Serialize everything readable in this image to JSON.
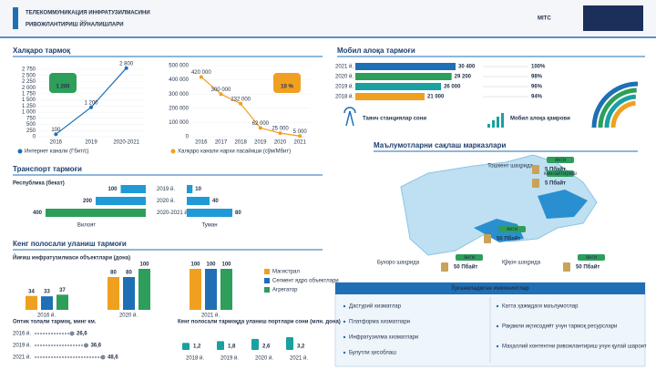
{
  "header": {
    "title": "ТЕЛЕКОММУНИКАЦИЯ ИНФРАТУЗИЛМАСИНИ",
    "subtitle": "РИВОЖЛАНТИРИШ ЙЎНАЛИШЛАРИ",
    "logo": "MITC"
  },
  "international": {
    "title": "Халқаро тармоқ",
    "bandwidth": {
      "type": "line",
      "legend": "Интернет канали (Гбит/с)",
      "badge": "1 200",
      "x": [
        "2016",
        "2019",
        "2020-2021"
      ],
      "values": [
        100,
        1200,
        2800
      ],
      "value_labels": [
        "100",
        "1 200",
        "2 800"
      ],
      "ylim": [
        0,
        2900
      ],
      "yticks": [
        0,
        250,
        500,
        750,
        {
          "value": 1000,
          "label": "1 000"
        },
        {
          "value": 1250,
          "label": "1 250"
        },
        {
          "value": 1500,
          "label": "1 500"
        },
        {
          "value": 1750,
          "label": "1 750"
        },
        {
          "value": 2000,
          "label": "2 000"
        },
        {
          "value": 2250,
          "label": "2 250"
        },
        {
          "value": 2500,
          "label": "2 500"
        },
        {
          "value": 2750,
          "label": "2 750"
        }
      ],
      "color": "#1f6fb5"
    },
    "price": {
      "type": "line",
      "legend": "Халқаро канали нархи пасайиши (сўм/Мбит)",
      "badge": "10 %",
      "x": [
        "2016",
        "2017",
        "2018",
        "2019",
        "2020",
        "2021"
      ],
      "values": [
        420000,
        300000,
        232000,
        62000,
        25000,
        5000
      ],
      "value_labels": [
        "420 000",
        "300 000",
        "232 000",
        "62 000",
        "25 000",
        "5 000"
      ],
      "ylim": [
        0,
        500000
      ],
      "yticks": [
        0,
        {
          "value": 100000,
          "label": "100 000"
        },
        {
          "value": 200000,
          "label": "200 000"
        },
        {
          "value": 300000,
          "label": "300 000"
        },
        {
          "value": 400000,
          "label": "400 000"
        },
        {
          "value": 500000,
          "label": "500 000"
        }
      ],
      "color": "#f0a020"
    }
  },
  "mobile": {
    "title": "Мобил алоқа тармоғи",
    "years": [
      "2021 й.",
      "2020 й.",
      "2019 й.",
      "2018 й."
    ],
    "stations": {
      "values": [
        30400,
        29200,
        26000,
        21000
      ],
      "value_labels": [
        "30 400",
        "29 200",
        "26 000",
        "21 000"
      ]
    },
    "coverage": {
      "values": [
        100,
        98,
        96,
        94
      ],
      "value_labels": [
        "100%",
        "98%",
        "96%",
        "94%"
      ]
    },
    "colors": [
      "#1f6fb5",
      "#2e9e5b",
      "#1aa0a0",
      "#f0a020"
    ],
    "stations_caption": "Таянч станциялар сони",
    "coverage_caption": "Мобил алоқа қамрови"
  },
  "transport": {
    "title": "Транспорт тармоғи",
    "caption": "Республика (бекат)",
    "national": {
      "categories": [
        null,
        null,
        null
      ],
      "values": [
        100,
        200,
        400
      ],
      "colors": [
        "#1f9ad6",
        "#1f9ad6",
        "#2e9e5b"
      ]
    },
    "national_label": "Вилоят",
    "district": {
      "categories": [
        "2019 й.",
        "2020 й.",
        "2020-2021 й."
      ],
      "values": [
        10,
        40,
        80
      ],
      "color": "#1f9ad6"
    },
    "district_label": "Туман"
  },
  "broadband": {
    "title": "Кенг полосали уланиш тармоғи",
    "aggregation": {
      "type": "bar",
      "caption": "Йиғиш инфратузилмаси объектлари (дона)",
      "categories": [
        "2016 й.",
        "2020 й.",
        "2021 й."
      ],
      "series": [
        {
          "name": "Магистрал",
          "color": "#f0a020",
          "values": [
            34,
            80,
            100
          ]
        },
        {
          "name": "Сегмент ядро объектлари",
          "color": "#1f6fb5",
          "values": [
            33,
            80,
            100
          ]
        },
        {
          "name": "Агрегатор",
          "color": "#2e9e5b",
          "values": [
            37,
            100,
            100
          ]
        }
      ]
    },
    "fiber": {
      "caption": "Оптик толали тармоқ, минг км.",
      "categories": [
        "2016 й.",
        "2019 й.",
        "2021 й."
      ],
      "values": [
        26.6,
        36.6,
        48.6
      ],
      "value_labels": [
        "26,6",
        "36,6",
        "48,6"
      ]
    },
    "ports": {
      "caption": "Кенг полосали тармоқда уланиш портлари сони (млн. дона)",
      "categories": [
        "2018 й.",
        "2019 й.",
        "2020 й.",
        "2021 й."
      ],
      "values": [
        1.2,
        1.8,
        2.6,
        3.2
      ],
      "value_labels": [
        "1,2",
        "1,8",
        "2,6",
        "3,2"
      ]
    }
  },
  "datacenters": {
    "title": "Маълумотларни сақлаш марказлари",
    "sites": [
      {
        "city": "Тошкент шаҳрида",
        "capacity": "5 Пбайт",
        "tag": "янги"
      },
      {
        "capacity": "5 Пбайт",
        "tag": "кенгайтириш"
      },
      {
        "city": "Бухоро шаҳрида",
        "capacity": "50 Пбайт",
        "tag": "янги"
      },
      {
        "capacity": "50 Пбайт",
        "tag": "янги"
      },
      {
        "city": "Қўқон шаҳрида",
        "capacity": "50 Пбайт",
        "tag": "янги"
      }
    ]
  },
  "capabilities": {
    "title": "Ўрганиладиган имкониятлар",
    "left": [
      "Дастурий хизматлар",
      "Платформа хизматлари",
      "Инфратузилма хизматлари",
      "Булутли ҳисоблаш"
    ],
    "right": [
      "Катта ҳажмдаги маълумотлар",
      "Рақамли иқтисодиёт учун тармоқ ресурслари",
      "Маҳаллий контентни ривожлантириш учун қулай шароит"
    ]
  }
}
